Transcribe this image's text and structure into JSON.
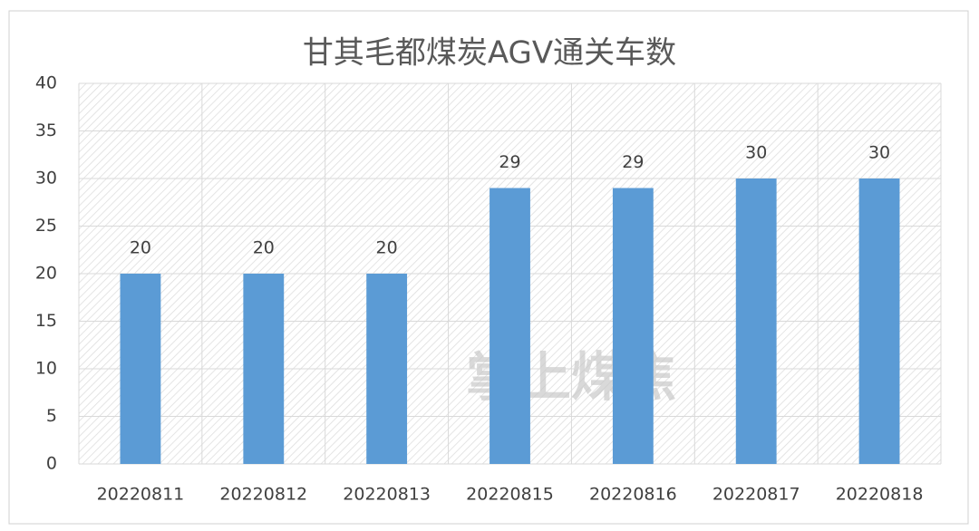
{
  "chart_data": {
    "type": "bar",
    "title": "甘其毛都煤炭AGV通关车数",
    "categories": [
      "20220811",
      "20220812",
      "20220813",
      "20220815",
      "20220816",
      "20220817",
      "20220818"
    ],
    "values": [
      20,
      20,
      20,
      29,
      29,
      30,
      30
    ],
    "color": "#5b9bd5",
    "ylim": [
      0,
      40
    ],
    "yticks": [
      0,
      5,
      10,
      15,
      20,
      25,
      30,
      35,
      40
    ],
    "grid": true,
    "watermark": "掌上煤焦"
  }
}
